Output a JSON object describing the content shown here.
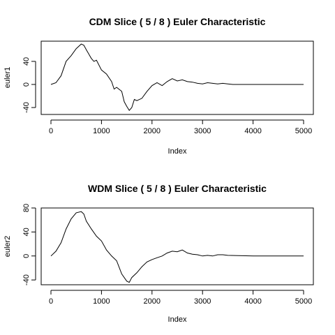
{
  "chart_data": [
    {
      "type": "line",
      "title": "CDM Slice ( 5 / 8 ) Euler Characteristic",
      "xlabel": "Index",
      "ylabel": "euler1",
      "xlim": [
        0,
        5000
      ],
      "ylim": [
        -52,
        75
      ],
      "xticks": [
        0,
        1000,
        2000,
        3000,
        4000,
        5000
      ],
      "yticks": [
        -40,
        0,
        40
      ],
      "grid": false,
      "series": [
        {
          "x": [
            0,
            100,
            200,
            300,
            400,
            500,
            600,
            650,
            700,
            800,
            850,
            900,
            1000,
            1100,
            1200,
            1250,
            1300,
            1400,
            1450,
            1500,
            1550,
            1600,
            1650,
            1700,
            1800,
            1900,
            2000,
            2100,
            2200,
            2300,
            2400,
            2500,
            2600,
            2700,
            2800,
            2900,
            3000,
            3100,
            3200,
            3300,
            3400,
            3500,
            3600,
            3700,
            4000,
            4500,
            5000
          ],
          "y": [
            0,
            3,
            15,
            40,
            50,
            62,
            70,
            68,
            60,
            45,
            40,
            42,
            25,
            18,
            5,
            -8,
            -5,
            -12,
            -30,
            -38,
            -45,
            -40,
            -26,
            -28,
            -24,
            -12,
            -2,
            3,
            -2,
            5,
            10,
            6,
            8,
            5,
            4,
            2,
            1,
            3,
            2,
            1,
            2,
            1,
            0,
            0,
            0,
            0,
            0
          ]
        }
      ]
    },
    {
      "type": "line",
      "title": "WDM Slice ( 5 / 8 ) Euler Characteristic",
      "xlabel": "Index",
      "ylabel": "euler2",
      "xlim": [
        0,
        5000
      ],
      "ylim": [
        -48,
        80
      ],
      "xticks": [
        0,
        1000,
        2000,
        3000,
        4000,
        5000
      ],
      "yticks": [
        -40,
        0,
        40,
        80
      ],
      "grid": false,
      "series": [
        {
          "x": [
            0,
            100,
            200,
            300,
            400,
            500,
            600,
            650,
            700,
            800,
            900,
            1000,
            1100,
            1200,
            1300,
            1400,
            1500,
            1550,
            1600,
            1700,
            1800,
            1900,
            2000,
            2100,
            2200,
            2300,
            2400,
            2500,
            2600,
            2700,
            2800,
            2900,
            3000,
            3100,
            3200,
            3300,
            3400,
            3500,
            4000,
            4500,
            5000
          ],
          "y": [
            0,
            8,
            22,
            45,
            62,
            72,
            74,
            70,
            58,
            45,
            33,
            25,
            10,
            0,
            -8,
            -30,
            -42,
            -44,
            -36,
            -28,
            -18,
            -10,
            -6,
            -3,
            0,
            5,
            8,
            7,
            10,
            5,
            3,
            2,
            0,
            1,
            0,
            2,
            2,
            1,
            0,
            0,
            0
          ]
        }
      ]
    }
  ]
}
